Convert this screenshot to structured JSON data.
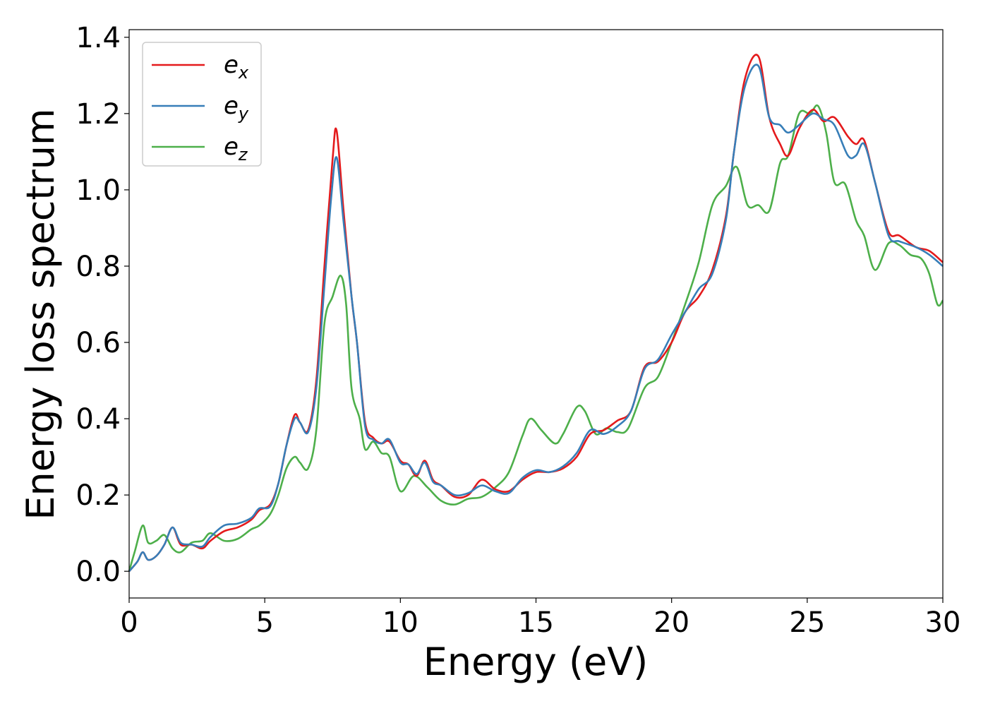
{
  "chart_data": {
    "type": "line",
    "title": "",
    "xlabel": "Energy (eV)",
    "ylabel": "Energy loss spectrum",
    "xlim": [
      0,
      30
    ],
    "ylim": [
      -0.07,
      1.42
    ],
    "xticks": [
      0,
      5,
      10,
      15,
      20,
      25,
      30
    ],
    "yticks": [
      0.0,
      0.2,
      0.4,
      0.6,
      0.8,
      1.0,
      1.2,
      1.4
    ],
    "xtick_labels": [
      "0",
      "5",
      "10",
      "15",
      "20",
      "25",
      "30"
    ],
    "ytick_labels": [
      "0.0",
      "0.2",
      "0.4",
      "0.6",
      "0.8",
      "1.0",
      "1.2",
      "1.4"
    ],
    "grid": false,
    "legend_position": "top-left",
    "series": [
      {
        "name": "e",
        "subscript": "x",
        "color": "#e41a1c",
        "points": [
          [
            0,
            0
          ],
          [
            0.3,
            0.025
          ],
          [
            0.5,
            0.05
          ],
          [
            0.7,
            0.03
          ],
          [
            1.0,
            0.04
          ],
          [
            1.3,
            0.07
          ],
          [
            1.6,
            0.115
          ],
          [
            1.9,
            0.07
          ],
          [
            2.3,
            0.07
          ],
          [
            2.7,
            0.06
          ],
          [
            3.0,
            0.08
          ],
          [
            3.5,
            0.105
          ],
          [
            4.0,
            0.115
          ],
          [
            4.5,
            0.135
          ],
          [
            4.8,
            0.16
          ],
          [
            5.2,
            0.175
          ],
          [
            5.5,
            0.23
          ],
          [
            5.8,
            0.33
          ],
          [
            6.1,
            0.41
          ],
          [
            6.3,
            0.39
          ],
          [
            6.6,
            0.37
          ],
          [
            6.9,
            0.5
          ],
          [
            7.2,
            0.8
          ],
          [
            7.5,
            1.08
          ],
          [
            7.65,
            1.155
          ],
          [
            7.9,
            0.95
          ],
          [
            8.2,
            0.72
          ],
          [
            8.4,
            0.6
          ],
          [
            8.7,
            0.39
          ],
          [
            9.0,
            0.35
          ],
          [
            9.3,
            0.335
          ],
          [
            9.6,
            0.34
          ],
          [
            10.0,
            0.29
          ],
          [
            10.3,
            0.28
          ],
          [
            10.6,
            0.25
          ],
          [
            10.9,
            0.29
          ],
          [
            11.2,
            0.24
          ],
          [
            11.5,
            0.225
          ],
          [
            12.0,
            0.195
          ],
          [
            12.5,
            0.2
          ],
          [
            13.0,
            0.24
          ],
          [
            13.5,
            0.215
          ],
          [
            14.0,
            0.21
          ],
          [
            14.5,
            0.24
          ],
          [
            15.0,
            0.26
          ],
          [
            15.5,
            0.26
          ],
          [
            16.0,
            0.27
          ],
          [
            16.5,
            0.3
          ],
          [
            17.0,
            0.36
          ],
          [
            17.5,
            0.37
          ],
          [
            18.0,
            0.395
          ],
          [
            18.5,
            0.42
          ],
          [
            19.0,
            0.535
          ],
          [
            19.5,
            0.55
          ],
          [
            20.0,
            0.6
          ],
          [
            20.5,
            0.68
          ],
          [
            21.0,
            0.72
          ],
          [
            21.5,
            0.79
          ],
          [
            22.0,
            0.93
          ],
          [
            22.3,
            1.1
          ],
          [
            22.7,
            1.29
          ],
          [
            23.2,
            1.35
          ],
          [
            23.6,
            1.19
          ],
          [
            24.0,
            1.12
          ],
          [
            24.3,
            1.09
          ],
          [
            24.7,
            1.16
          ],
          [
            25.2,
            1.21
          ],
          [
            25.6,
            1.18
          ],
          [
            26.0,
            1.19
          ],
          [
            26.5,
            1.14
          ],
          [
            26.8,
            1.12
          ],
          [
            27.1,
            1.13
          ],
          [
            27.5,
            1.02
          ],
          [
            28.0,
            0.89
          ],
          [
            28.4,
            0.88
          ],
          [
            29.0,
            0.85
          ],
          [
            29.5,
            0.84
          ],
          [
            30.0,
            0.81
          ]
        ]
      },
      {
        "name": "e",
        "subscript": "y",
        "color": "#377eb8",
        "points": [
          [
            0,
            0
          ],
          [
            0.3,
            0.025
          ],
          [
            0.5,
            0.05
          ],
          [
            0.7,
            0.03
          ],
          [
            1.0,
            0.04
          ],
          [
            1.3,
            0.07
          ],
          [
            1.6,
            0.115
          ],
          [
            1.9,
            0.075
          ],
          [
            2.3,
            0.07
          ],
          [
            2.7,
            0.065
          ],
          [
            3.0,
            0.09
          ],
          [
            3.5,
            0.12
          ],
          [
            4.0,
            0.125
          ],
          [
            4.5,
            0.14
          ],
          [
            4.8,
            0.165
          ],
          [
            5.2,
            0.17
          ],
          [
            5.5,
            0.23
          ],
          [
            5.8,
            0.33
          ],
          [
            6.1,
            0.4
          ],
          [
            6.3,
            0.39
          ],
          [
            6.6,
            0.365
          ],
          [
            6.9,
            0.48
          ],
          [
            7.2,
            0.75
          ],
          [
            7.45,
            0.98
          ],
          [
            7.65,
            1.085
          ],
          [
            7.9,
            0.92
          ],
          [
            8.2,
            0.72
          ],
          [
            8.4,
            0.6
          ],
          [
            8.7,
            0.38
          ],
          [
            9.0,
            0.345
          ],
          [
            9.3,
            0.335
          ],
          [
            9.6,
            0.345
          ],
          [
            10.0,
            0.285
          ],
          [
            10.3,
            0.28
          ],
          [
            10.6,
            0.255
          ],
          [
            10.9,
            0.285
          ],
          [
            11.2,
            0.235
          ],
          [
            11.5,
            0.225
          ],
          [
            12.0,
            0.2
          ],
          [
            12.5,
            0.205
          ],
          [
            13.0,
            0.225
          ],
          [
            13.5,
            0.21
          ],
          [
            14.0,
            0.205
          ],
          [
            14.5,
            0.245
          ],
          [
            15.0,
            0.265
          ],
          [
            15.5,
            0.26
          ],
          [
            16.0,
            0.275
          ],
          [
            16.5,
            0.31
          ],
          [
            17.0,
            0.37
          ],
          [
            17.5,
            0.36
          ],
          [
            18.0,
            0.38
          ],
          [
            18.5,
            0.42
          ],
          [
            19.0,
            0.53
          ],
          [
            19.5,
            0.555
          ],
          [
            20.0,
            0.62
          ],
          [
            20.5,
            0.68
          ],
          [
            21.0,
            0.74
          ],
          [
            21.5,
            0.78
          ],
          [
            22.0,
            0.92
          ],
          [
            22.3,
            1.1
          ],
          [
            22.7,
            1.27
          ],
          [
            23.2,
            1.325
          ],
          [
            23.6,
            1.19
          ],
          [
            24.0,
            1.17
          ],
          [
            24.3,
            1.15
          ],
          [
            24.7,
            1.17
          ],
          [
            25.2,
            1.2
          ],
          [
            25.6,
            1.185
          ],
          [
            26.0,
            1.17
          ],
          [
            26.5,
            1.09
          ],
          [
            26.8,
            1.09
          ],
          [
            27.1,
            1.12
          ],
          [
            27.5,
            1.02
          ],
          [
            28.0,
            0.88
          ],
          [
            28.4,
            0.865
          ],
          [
            29.0,
            0.85
          ],
          [
            29.5,
            0.83
          ],
          [
            30.0,
            0.8
          ]
        ]
      },
      {
        "name": "e",
        "subscript": "z",
        "color": "#4daf4a",
        "points": [
          [
            0,
            0
          ],
          [
            0.2,
            0.05
          ],
          [
            0.5,
            0.12
          ],
          [
            0.7,
            0.075
          ],
          [
            1.0,
            0.08
          ],
          [
            1.3,
            0.095
          ],
          [
            1.6,
            0.06
          ],
          [
            1.9,
            0.05
          ],
          [
            2.3,
            0.075
          ],
          [
            2.7,
            0.08
          ],
          [
            3.0,
            0.1
          ],
          [
            3.5,
            0.08
          ],
          [
            4.0,
            0.085
          ],
          [
            4.5,
            0.11
          ],
          [
            4.8,
            0.12
          ],
          [
            5.2,
            0.15
          ],
          [
            5.5,
            0.2
          ],
          [
            5.8,
            0.27
          ],
          [
            6.1,
            0.3
          ],
          [
            6.3,
            0.285
          ],
          [
            6.6,
            0.27
          ],
          [
            6.9,
            0.37
          ],
          [
            7.2,
            0.65
          ],
          [
            7.5,
            0.72
          ],
          [
            7.8,
            0.775
          ],
          [
            8.0,
            0.7
          ],
          [
            8.2,
            0.48
          ],
          [
            8.5,
            0.4
          ],
          [
            8.7,
            0.32
          ],
          [
            9.0,
            0.34
          ],
          [
            9.3,
            0.31
          ],
          [
            9.6,
            0.3
          ],
          [
            10.0,
            0.21
          ],
          [
            10.5,
            0.25
          ],
          [
            11.0,
            0.22
          ],
          [
            11.5,
            0.185
          ],
          [
            12.0,
            0.175
          ],
          [
            12.5,
            0.19
          ],
          [
            13.0,
            0.195
          ],
          [
            13.5,
            0.22
          ],
          [
            14.0,
            0.26
          ],
          [
            14.5,
            0.355
          ],
          [
            14.8,
            0.4
          ],
          [
            15.2,
            0.37
          ],
          [
            15.7,
            0.335
          ],
          [
            16.0,
            0.36
          ],
          [
            16.5,
            0.43
          ],
          [
            16.8,
            0.42
          ],
          [
            17.2,
            0.36
          ],
          [
            17.6,
            0.375
          ],
          [
            18.0,
            0.365
          ],
          [
            18.4,
            0.375
          ],
          [
            19.0,
            0.48
          ],
          [
            19.5,
            0.51
          ],
          [
            20.0,
            0.6
          ],
          [
            20.5,
            0.7
          ],
          [
            21.0,
            0.81
          ],
          [
            21.5,
            0.96
          ],
          [
            22.0,
            1.01
          ],
          [
            22.4,
            1.06
          ],
          [
            22.8,
            0.96
          ],
          [
            23.2,
            0.96
          ],
          [
            23.6,
            0.945
          ],
          [
            24.0,
            1.07
          ],
          [
            24.3,
            1.09
          ],
          [
            24.7,
            1.2
          ],
          [
            25.1,
            1.2
          ],
          [
            25.4,
            1.22
          ],
          [
            25.7,
            1.15
          ],
          [
            26.0,
            1.02
          ],
          [
            26.4,
            1.015
          ],
          [
            26.8,
            0.92
          ],
          [
            27.1,
            0.88
          ],
          [
            27.5,
            0.79
          ],
          [
            28.0,
            0.86
          ],
          [
            28.4,
            0.855
          ],
          [
            28.8,
            0.83
          ],
          [
            29.2,
            0.82
          ],
          [
            29.5,
            0.78
          ],
          [
            29.8,
            0.7
          ],
          [
            30.0,
            0.71
          ]
        ]
      }
    ]
  }
}
